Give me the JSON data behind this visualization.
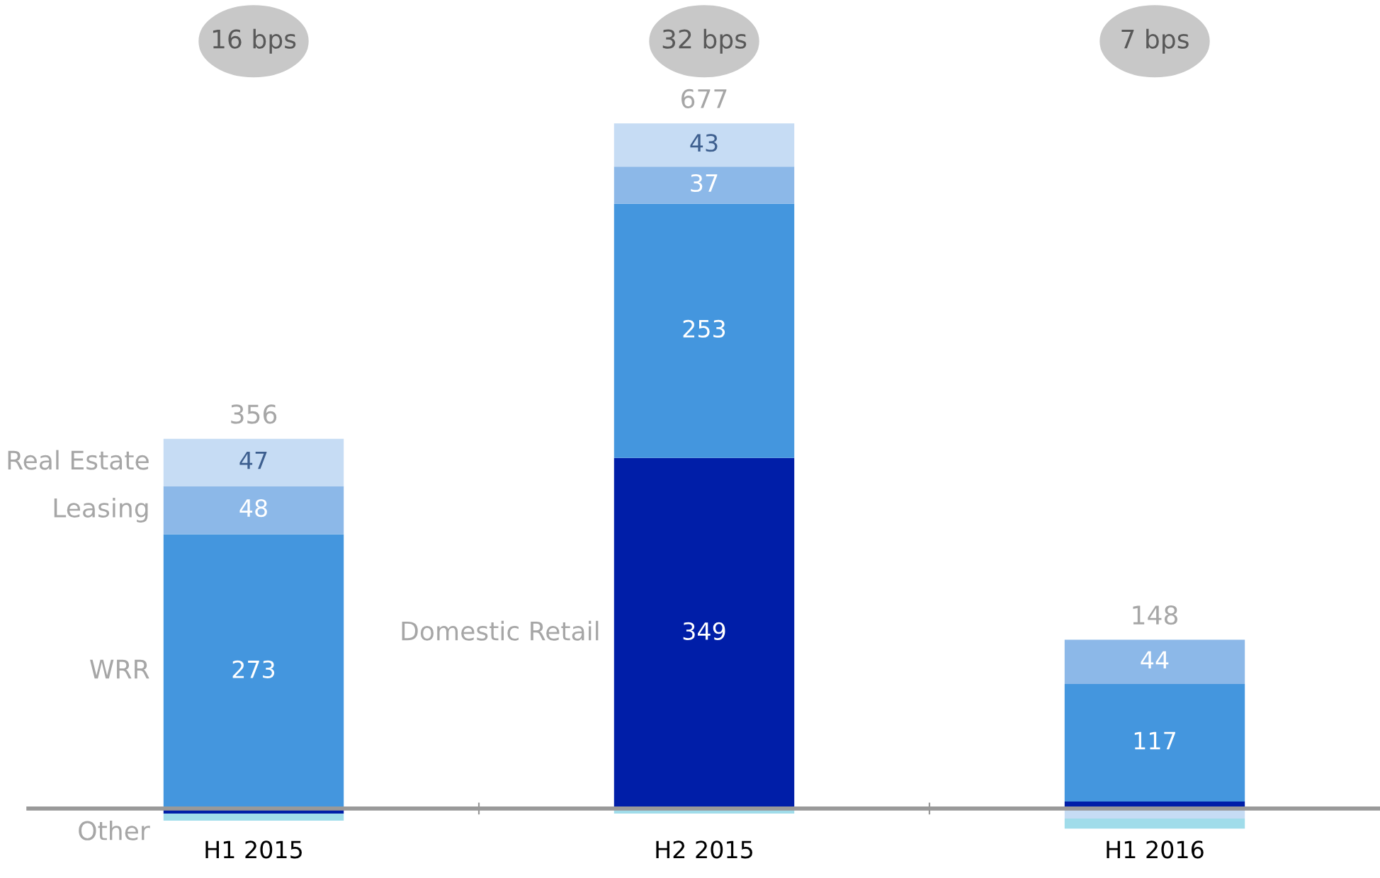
{
  "chart_data": {
    "type": "bar",
    "stacked": true,
    "categories": [
      "H1 2015",
      "H2 2015",
      "H1 2016"
    ],
    "series": [
      {
        "name": "Domestic Retail",
        "color": "#001ea8",
        "values": [
          -5,
          349,
          7
        ],
        "value_labels": [
          null,
          "349",
          null
        ]
      },
      {
        "name": "WRR",
        "color": "#4496de",
        "values": [
          273,
          253,
          117
        ],
        "value_labels": [
          "273",
          "253",
          "117"
        ]
      },
      {
        "name": "Leasing",
        "color": "#8cb8e8",
        "values": [
          48,
          37,
          44
        ],
        "value_labels": [
          "48",
          "37",
          "44"
        ]
      },
      {
        "name": "Real Estate",
        "color": "#c6dcf4",
        "values": [
          47,
          43,
          -10
        ],
        "value_labels": [
          "47",
          "43",
          null
        ]
      },
      {
        "name": "Other",
        "color": "#a0dcea",
        "values": [
          -7,
          -5,
          -10
        ],
        "value_labels": [
          null,
          null,
          null
        ]
      }
    ],
    "totals": [
      "356",
      "677",
      "148"
    ],
    "annotations": [
      "16 bps",
      "32 bps",
      "7 bps"
    ],
    "tick_labels": "x",
    "grid": false,
    "legend": false
  }
}
